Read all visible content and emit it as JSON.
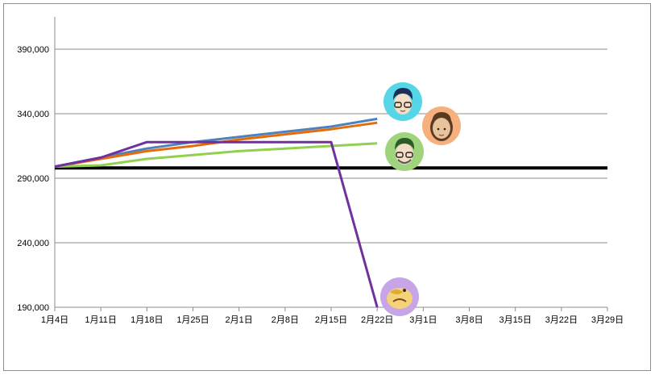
{
  "chart_data": {
    "type": "line",
    "title": "",
    "xlabel": "",
    "ylabel": "",
    "x_ticks": [
      "1月4日",
      "1月11日",
      "1月18日",
      "1月25日",
      "2月1日",
      "2月8日",
      "2月15日",
      "2月22日",
      "3月1日",
      "3月8日",
      "3月15日",
      "3月22日",
      "3月29日"
    ],
    "y_ticks": [
      "190,000",
      "240,000",
      "290,000",
      "340,000",
      "390,000"
    ],
    "ylim": [
      190000,
      410000
    ],
    "x_range_days": [
      0,
      84
    ],
    "grid": true,
    "legend": "none",
    "reference_line": {
      "y": 298000,
      "color": "#000000"
    },
    "series": [
      {
        "color": "#4f81bd",
        "icon": "avatar-glasses-man-icon",
        "x": [
          0,
          7,
          14,
          21,
          28,
          35,
          42,
          49
        ],
        "y": [
          299000,
          306000,
          313000,
          318000,
          322000,
          326000,
          330000,
          336000
        ]
      },
      {
        "color": "#e46c0a",
        "icon": "avatar-long-hair-man-icon",
        "x": [
          0,
          7,
          14,
          21,
          28,
          35,
          42,
          49
        ],
        "y": [
          299000,
          305000,
          311000,
          315000,
          320000,
          324000,
          328000,
          333000
        ]
      },
      {
        "color": "#92d050",
        "icon": "avatar-green-glasses-man-icon",
        "x": [
          0,
          7,
          14,
          21,
          28,
          35,
          42,
          49
        ],
        "y": [
          299000,
          300000,
          305000,
          308000,
          311000,
          313000,
          315000,
          317000
        ]
      },
      {
        "color": "#7030a0",
        "icon": "avatar-sleeping-cat-icon",
        "x": [
          0,
          7,
          14,
          21,
          28,
          35,
          42,
          49
        ],
        "y": [
          299000,
          306000,
          318000,
          318000,
          318000,
          318000,
          318000,
          190000
        ]
      }
    ]
  }
}
